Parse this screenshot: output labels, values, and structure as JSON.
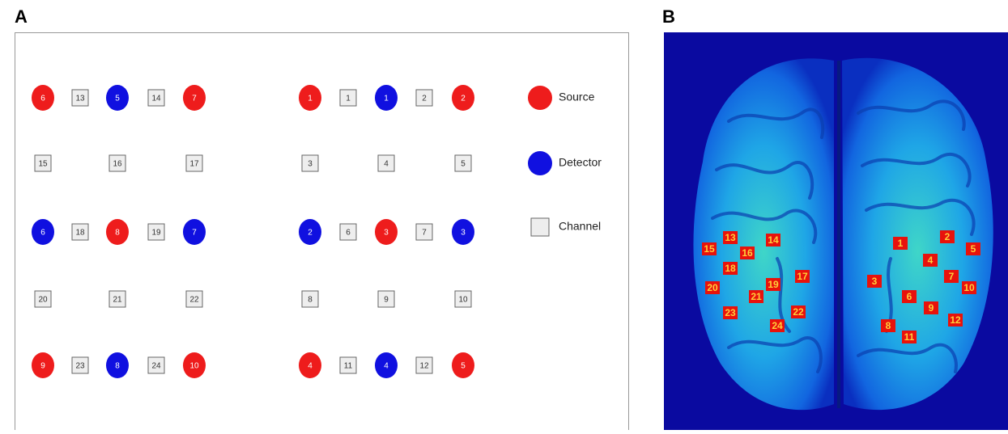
{
  "panel_a": {
    "label": "A",
    "groups": [
      {
        "rows": [
          {
            "items": [
              {
                "kind": "source",
                "label": "6"
              },
              {
                "kind": "channel",
                "label": "13"
              },
              {
                "kind": "detector",
                "label": "5"
              },
              {
                "kind": "channel",
                "label": "14"
              },
              {
                "kind": "source",
                "label": "7"
              }
            ]
          },
          {
            "items": [
              {
                "kind": "channel",
                "label": "15"
              },
              {
                "kind": "channel",
                "label": "16"
              },
              {
                "kind": "channel",
                "label": "17"
              }
            ]
          },
          {
            "items": [
              {
                "kind": "detector",
                "label": "6"
              },
              {
                "kind": "channel",
                "label": "18"
              },
              {
                "kind": "source",
                "label": "8"
              },
              {
                "kind": "channel",
                "label": "19"
              },
              {
                "kind": "detector",
                "label": "7"
              }
            ]
          },
          {
            "items": [
              {
                "kind": "channel",
                "label": "20"
              },
              {
                "kind": "channel",
                "label": "21"
              },
              {
                "kind": "channel",
                "label": "22"
              }
            ]
          },
          {
            "items": [
              {
                "kind": "source",
                "label": "9"
              },
              {
                "kind": "channel",
                "label": "23"
              },
              {
                "kind": "detector",
                "label": "8"
              },
              {
                "kind": "channel",
                "label": "24"
              },
              {
                "kind": "source",
                "label": "10"
              }
            ]
          }
        ]
      },
      {
        "rows": [
          {
            "items": [
              {
                "kind": "source",
                "label": "1"
              },
              {
                "kind": "channel",
                "label": "1"
              },
              {
                "kind": "detector",
                "label": "1"
              },
              {
                "kind": "channel",
                "label": "2"
              },
              {
                "kind": "source",
                "label": "2"
              }
            ]
          },
          {
            "items": [
              {
                "kind": "channel",
                "label": "3"
              },
              {
                "kind": "channel",
                "label": "4"
              },
              {
                "kind": "channel",
                "label": "5"
              }
            ]
          },
          {
            "items": [
              {
                "kind": "detector",
                "label": "2"
              },
              {
                "kind": "channel",
                "label": "6"
              },
              {
                "kind": "source",
                "label": "3"
              },
              {
                "kind": "channel",
                "label": "7"
              },
              {
                "kind": "detector",
                "label": "3"
              }
            ]
          },
          {
            "items": [
              {
                "kind": "channel",
                "label": "8"
              },
              {
                "kind": "channel",
                "label": "9"
              },
              {
                "kind": "channel",
                "label": "10"
              }
            ]
          },
          {
            "items": [
              {
                "kind": "source",
                "label": "4"
              },
              {
                "kind": "channel",
                "label": "11"
              },
              {
                "kind": "detector",
                "label": "4"
              },
              {
                "kind": "channel",
                "label": "12"
              },
              {
                "kind": "source",
                "label": "5"
              }
            ]
          }
        ]
      }
    ],
    "legend": [
      {
        "kind": "source",
        "label": "Source"
      },
      {
        "kind": "detector",
        "label": "Detector"
      },
      {
        "kind": "channel",
        "label": "Channel"
      }
    ]
  },
  "panel_b": {
    "label": "B",
    "channels": [
      "1",
      "2",
      "3",
      "4",
      "5",
      "6",
      "7",
      "8",
      "9",
      "10",
      "11",
      "12",
      "13",
      "14",
      "15",
      "16",
      "17",
      "18",
      "19",
      "20",
      "21",
      "22",
      "23",
      "24"
    ]
  }
}
